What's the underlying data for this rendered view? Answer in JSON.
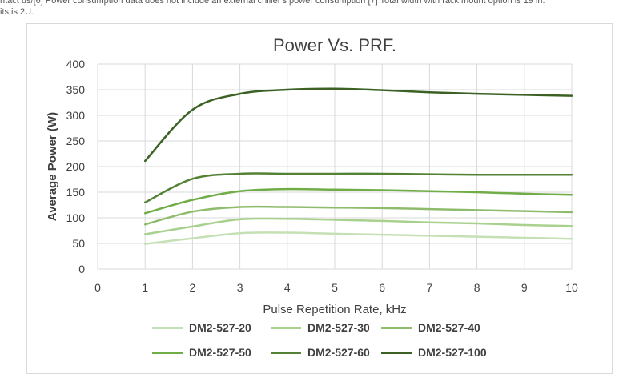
{
  "page": {
    "note_line1": "ntact us/[6] Power consumption data does not include an external chiller's power consumption [7] Total width with rack mount option is 19 in.",
    "note_line2": "its is 2U."
  },
  "chart_data": {
    "type": "line",
    "title": "Power Vs. PRF.",
    "xlabel": "Pulse Repetition Rate, kHz",
    "ylabel": "Average Power (W)",
    "xlim": [
      0,
      10
    ],
    "ylim": [
      0,
      400
    ],
    "xticks": [
      0,
      1,
      2,
      3,
      4,
      5,
      6,
      7,
      8,
      9,
      10
    ],
    "yticks": [
      0,
      50,
      100,
      150,
      200,
      250,
      300,
      350,
      400
    ],
    "grid": true,
    "legend_position": "bottom",
    "x": [
      1,
      2,
      3,
      4,
      5,
      6,
      7,
      8,
      9,
      10
    ],
    "series": [
      {
        "name": "DM2-527-20",
        "color": "#c5e0b4",
        "values": [
          49,
          60,
          70,
          71,
          69,
          67,
          65,
          63,
          61,
          59
        ]
      },
      {
        "name": "DM2-527-30",
        "color": "#a9d18e",
        "values": [
          68,
          83,
          97,
          98,
          96,
          94,
          91,
          89,
          86,
          84
        ]
      },
      {
        "name": "DM2-527-40",
        "color": "#8fbc6c",
        "values": [
          87,
          112,
          121,
          121,
          120,
          119,
          117,
          115,
          113,
          111
        ]
      },
      {
        "name": "DM2-527-50",
        "color": "#70ad47",
        "values": [
          109,
          135,
          152,
          156,
          155,
          154,
          152,
          150,
          147,
          145
        ]
      },
      {
        "name": "DM2-527-60",
        "color": "#548235",
        "values": [
          130,
          176,
          186,
          186,
          186,
          186,
          185,
          184,
          184,
          184
        ]
      },
      {
        "name": "DM2-527-100",
        "color": "#3b6224",
        "values": [
          211,
          311,
          342,
          350,
          352,
          349,
          345,
          342,
          340,
          338
        ]
      }
    ]
  }
}
